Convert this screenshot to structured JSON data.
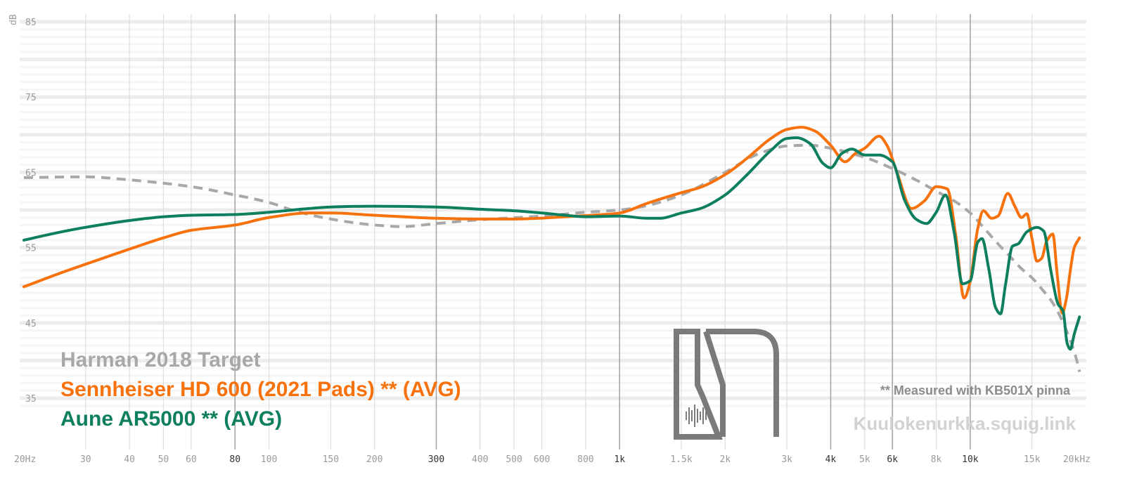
{
  "chart_data": {
    "type": "line",
    "title": "",
    "xlabel": "",
    "ylabel": "dB",
    "x_scale": "log",
    "xlim": [
      20,
      20000
    ],
    "ylim": [
      32,
      86
    ],
    "grid": true,
    "legend_position": "bottom-left",
    "y_ticks": [
      85,
      75,
      65,
      55,
      45,
      35
    ],
    "x_ticks": [
      {
        "value": 20,
        "label": "20Hz",
        "major": false
      },
      {
        "value": 30,
        "label": "30",
        "major": false
      },
      {
        "value": 40,
        "label": "40",
        "major": false
      },
      {
        "value": 50,
        "label": "50",
        "major": false
      },
      {
        "value": 60,
        "label": "60",
        "major": false
      },
      {
        "value": 80,
        "label": "80",
        "major": true
      },
      {
        "value": 100,
        "label": "100",
        "major": false
      },
      {
        "value": 150,
        "label": "150",
        "major": false
      },
      {
        "value": 200,
        "label": "200",
        "major": false
      },
      {
        "value": 300,
        "label": "300",
        "major": true
      },
      {
        "value": 400,
        "label": "400",
        "major": false
      },
      {
        "value": 500,
        "label": "500",
        "major": false
      },
      {
        "value": 600,
        "label": "600",
        "major": false
      },
      {
        "value": 800,
        "label": "800",
        "major": false
      },
      {
        "value": 1000,
        "label": "1k",
        "major": true
      },
      {
        "value": 1500,
        "label": "1.5k",
        "major": false
      },
      {
        "value": 2000,
        "label": "2k",
        "major": false
      },
      {
        "value": 3000,
        "label": "3k",
        "major": false
      },
      {
        "value": 4000,
        "label": "4k",
        "major": true
      },
      {
        "value": 5000,
        "label": "5k",
        "major": false
      },
      {
        "value": 6000,
        "label": "6k",
        "major": true
      },
      {
        "value": 8000,
        "label": "8k",
        "major": false
      },
      {
        "value": 10000,
        "label": "10k",
        "major": true
      },
      {
        "value": 15000,
        "label": "15k",
        "major": false
      },
      {
        "value": 20000,
        "label": "20kHz",
        "major": false
      }
    ],
    "series": [
      {
        "name": "Harman 2018 Target",
        "color": "#a8a8a8",
        "dashed": true,
        "points": [
          [
            20,
            64.3
          ],
          [
            30,
            64.4
          ],
          [
            40,
            64.0
          ],
          [
            60,
            63.1
          ],
          [
            80,
            62.0
          ],
          [
            100,
            61.0
          ],
          [
            120,
            59.8
          ],
          [
            150,
            58.8
          ],
          [
            200,
            58.0
          ],
          [
            240,
            57.8
          ],
          [
            300,
            58.2
          ],
          [
            400,
            58.7
          ],
          [
            600,
            59.2
          ],
          [
            800,
            59.7
          ],
          [
            1000,
            60.0
          ],
          [
            1200,
            60.6
          ],
          [
            1500,
            62.0
          ],
          [
            2000,
            65.0
          ],
          [
            2500,
            67.5
          ],
          [
            3000,
            68.5
          ],
          [
            3500,
            68.6
          ],
          [
            4000,
            68.2
          ],
          [
            5000,
            67.0
          ],
          [
            6000,
            65.5
          ],
          [
            7000,
            64.0
          ],
          [
            8000,
            62.5
          ],
          [
            9000,
            61.2
          ],
          [
            10000,
            59.6
          ],
          [
            11000,
            57.5
          ],
          [
            12000,
            55.5
          ],
          [
            13000,
            53.8
          ],
          [
            14000,
            52.2
          ],
          [
            15000,
            51.0
          ],
          [
            16000,
            49.5
          ],
          [
            17000,
            48.0
          ],
          [
            18000,
            46.0
          ],
          [
            19000,
            43.5
          ],
          [
            20000,
            40.5
          ],
          [
            20500,
            38.5
          ]
        ]
      },
      {
        "name": "Sennheiser HD 600 (2021 Pads) ** (AVG)",
        "color": "#f7720d",
        "dashed": false,
        "points": [
          [
            20,
            49.8
          ],
          [
            25,
            51.5
          ],
          [
            30,
            52.8
          ],
          [
            40,
            54.8
          ],
          [
            50,
            56.3
          ],
          [
            60,
            57.3
          ],
          [
            80,
            58.0
          ],
          [
            100,
            59.0
          ],
          [
            130,
            59.6
          ],
          [
            150,
            59.6
          ],
          [
            200,
            59.3
          ],
          [
            300,
            58.9
          ],
          [
            400,
            58.8
          ],
          [
            500,
            58.8
          ],
          [
            700,
            59.1
          ],
          [
            900,
            59.4
          ],
          [
            1000,
            59.6
          ],
          [
            1200,
            60.9
          ],
          [
            1500,
            62.3
          ],
          [
            1700,
            63.0
          ],
          [
            2000,
            64.7
          ],
          [
            2300,
            66.8
          ],
          [
            2700,
            69.5
          ],
          [
            3000,
            70.7
          ],
          [
            3300,
            71.0
          ],
          [
            3600,
            70.5
          ],
          [
            4000,
            68.6
          ],
          [
            4400,
            66.4
          ],
          [
            4700,
            67.5
          ],
          [
            5000,
            68.2
          ],
          [
            5500,
            69.8
          ],
          [
            5800,
            68.5
          ],
          [
            6200,
            64.8
          ],
          [
            6800,
            60.2
          ],
          [
            7400,
            61.2
          ],
          [
            8000,
            63.1
          ],
          [
            8600,
            62.8
          ],
          [
            9100,
            56.5
          ],
          [
            9600,
            48.3
          ],
          [
            10000,
            50.5
          ],
          [
            10500,
            57.5
          ],
          [
            10900,
            59.9
          ],
          [
            11500,
            58.9
          ],
          [
            12000,
            59.2
          ],
          [
            12800,
            62.2
          ],
          [
            13400,
            60.5
          ],
          [
            14000,
            59.0
          ],
          [
            14500,
            59.5
          ],
          [
            15000,
            56.2
          ],
          [
            15500,
            53.2
          ],
          [
            16000,
            53.6
          ],
          [
            16500,
            55.8
          ],
          [
            17200,
            56.8
          ],
          [
            17700,
            51.5
          ],
          [
            18300,
            46.3
          ],
          [
            18800,
            48.2
          ],
          [
            19300,
            52.0
          ],
          [
            19800,
            55.0
          ],
          [
            20500,
            56.3
          ]
        ]
      },
      {
        "name": "Aune AR5000 ** (AVG)",
        "color": "#0e7f5e",
        "dashed": false,
        "points": [
          [
            20,
            56.0
          ],
          [
            25,
            57.0
          ],
          [
            30,
            57.7
          ],
          [
            40,
            58.6
          ],
          [
            50,
            59.1
          ],
          [
            60,
            59.3
          ],
          [
            80,
            59.4
          ],
          [
            100,
            59.7
          ],
          [
            130,
            60.2
          ],
          [
            150,
            60.4
          ],
          [
            200,
            60.5
          ],
          [
            300,
            60.4
          ],
          [
            400,
            60.1
          ],
          [
            500,
            59.9
          ],
          [
            600,
            59.6
          ],
          [
            700,
            59.3
          ],
          [
            800,
            59.1
          ],
          [
            1000,
            59.2
          ],
          [
            1200,
            58.9
          ],
          [
            1300,
            58.9
          ],
          [
            1500,
            59.6
          ],
          [
            1700,
            60.2
          ],
          [
            2000,
            62.0
          ],
          [
            2300,
            64.6
          ],
          [
            2700,
            67.9
          ],
          [
            3000,
            69.5
          ],
          [
            3200,
            69.6
          ],
          [
            3500,
            68.8
          ],
          [
            3800,
            66.2
          ],
          [
            4000,
            65.6
          ],
          [
            4300,
            67.5
          ],
          [
            4600,
            68.1
          ],
          [
            5000,
            67.3
          ],
          [
            5500,
            67.3
          ],
          [
            6000,
            66.4
          ],
          [
            6500,
            61.3
          ],
          [
            7000,
            58.8
          ],
          [
            7500,
            58.2
          ],
          [
            8000,
            59.7
          ],
          [
            8500,
            62.0
          ],
          [
            9000,
            57.0
          ],
          [
            9500,
            50.2
          ],
          [
            10000,
            50.6
          ],
          [
            10500,
            55.7
          ],
          [
            10800,
            56.2
          ],
          [
            11300,
            52.1
          ],
          [
            11800,
            47.1
          ],
          [
            12200,
            46.2
          ],
          [
            12600,
            50.0
          ],
          [
            13200,
            55.2
          ],
          [
            13700,
            55.5
          ],
          [
            14500,
            57.1
          ],
          [
            15500,
            57.7
          ],
          [
            16200,
            57.2
          ],
          [
            17000,
            51.8
          ],
          [
            17800,
            47.5
          ],
          [
            18400,
            46.6
          ],
          [
            18900,
            42.3
          ],
          [
            19300,
            41.5
          ],
          [
            19800,
            43.5
          ],
          [
            20500,
            45.8
          ]
        ]
      }
    ]
  },
  "legend": {
    "items": [
      {
        "label": "Harman 2018 Target",
        "color": "#a8a8a8"
      },
      {
        "label": "Sennheiser HD 600 (2021 Pads) ** (AVG)",
        "color": "#f7720d"
      },
      {
        "label": "Aune AR5000 ** (AVG)",
        "color": "#0e7f5e"
      }
    ]
  },
  "note": "** Measured with KB501X pinna",
  "watermark": "Kuulokenurkka.squig.link",
  "logo": {
    "text": "KN",
    "color": "#7a7a7a"
  }
}
